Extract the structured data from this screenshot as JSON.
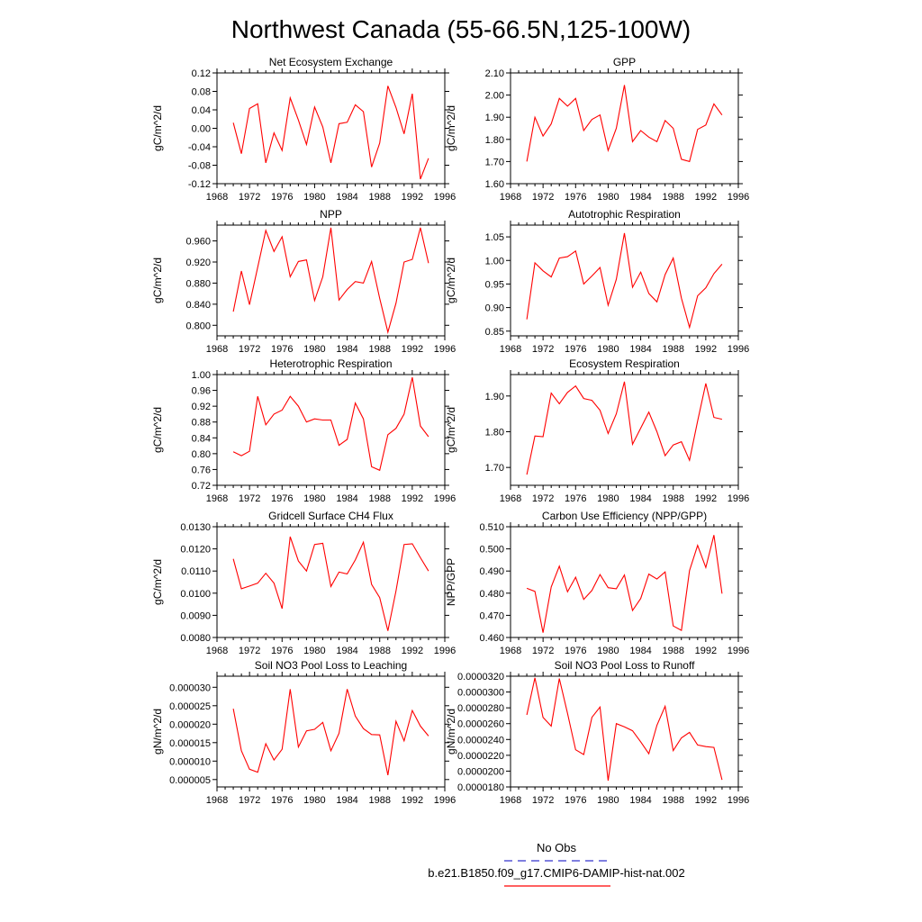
{
  "page": {
    "title": "Northwest Canada (55-66.5N,125-100W)"
  },
  "legend": {
    "items": [
      {
        "label": "No Obs",
        "color": "#3333cc",
        "style": "dashed"
      },
      {
        "label": "b.e21.B1850.f09_g17.CMIP6-DAMIP-hist-nat.002",
        "color": "#ff0000",
        "style": "solid"
      }
    ]
  },
  "chart_data": [
    {
      "type": "line",
      "title": "Net Ecosystem Exchange",
      "xlabel": "",
      "ylabel": "gC/m^2/d",
      "xlim": [
        1968,
        1996
      ],
      "ylim": [
        -0.12,
        0.12
      ],
      "xticks": [
        "1968",
        "1972",
        "1976",
        "1980",
        "1984",
        "1988",
        "1992",
        "1996"
      ],
      "yticks": [
        "-0.12",
        "-0.08",
        "-0.04",
        "0.00",
        "0.04",
        "0.08",
        "0.12"
      ],
      "series": [
        {
          "color": "#ff0000",
          "x": [
            1970,
            1971,
            1972,
            1973,
            1974,
            1975,
            1976,
            1977,
            1978,
            1979,
            1980,
            1981,
            1982,
            1983,
            1984,
            1985,
            1986,
            1987,
            1988,
            1989,
            1990,
            1991,
            1992,
            1993,
            1994
          ],
          "values": [
            0.012,
            -0.055,
            0.043,
            0.053,
            -0.075,
            -0.01,
            -0.048,
            0.066,
            0.018,
            -0.035,
            0.046,
            0.003,
            -0.075,
            0.01,
            0.013,
            0.051,
            0.036,
            -0.084,
            -0.032,
            0.092,
            0.045,
            -0.012,
            0.075,
            -0.11,
            -0.065
          ]
        }
      ]
    },
    {
      "type": "line",
      "title": "GPP",
      "xlabel": "",
      "ylabel": "gC/m^2/d",
      "xlim": [
        1968,
        1996
      ],
      "ylim": [
        1.6,
        2.1
      ],
      "xticks": [
        "1968",
        "1972",
        "1976",
        "1980",
        "1984",
        "1988",
        "1992",
        "1996"
      ],
      "yticks": [
        "1.60",
        "1.70",
        "1.80",
        "1.90",
        "2.00",
        "2.10"
      ],
      "series": [
        {
          "color": "#ff0000",
          "x": [
            1970,
            1971,
            1972,
            1973,
            1974,
            1975,
            1976,
            1977,
            1978,
            1979,
            1980,
            1981,
            1982,
            1983,
            1984,
            1985,
            1986,
            1987,
            1988,
            1989,
            1990,
            1991,
            1992,
            1993,
            1994
          ],
          "values": [
            1.7,
            1.9,
            1.815,
            1.87,
            1.985,
            1.95,
            1.985,
            1.84,
            1.89,
            1.91,
            1.75,
            1.85,
            2.045,
            1.79,
            1.84,
            1.81,
            1.79,
            1.885,
            1.85,
            1.71,
            1.7,
            1.845,
            1.865,
            1.96,
            1.91
          ]
        }
      ]
    },
    {
      "type": "line",
      "title": "NPP",
      "xlabel": "",
      "ylabel": "gC/m^2/d",
      "xlim": [
        1968,
        1996
      ],
      "ylim": [
        0.78,
        0.99
      ],
      "xticks": [
        "1968",
        "1972",
        "1976",
        "1980",
        "1984",
        "1988",
        "1992",
        "1996"
      ],
      "yticks": [
        "0.800",
        "0.840",
        "0.880",
        "0.920",
        "0.960"
      ],
      "series": [
        {
          "color": "#ff0000",
          "x": [
            1970,
            1971,
            1972,
            1973,
            1974,
            1975,
            1976,
            1977,
            1978,
            1979,
            1980,
            1981,
            1982,
            1983,
            1984,
            1985,
            1986,
            1987,
            1988,
            1989,
            1990,
            1991,
            1992,
            1993,
            1994
          ],
          "values": [
            0.826,
            0.903,
            0.839,
            0.91,
            0.98,
            0.94,
            0.968,
            0.892,
            0.921,
            0.924,
            0.847,
            0.892,
            0.985,
            0.848,
            0.868,
            0.883,
            0.88,
            0.921,
            0.851,
            0.787,
            0.842,
            0.92,
            0.925,
            0.985,
            0.918
          ]
        }
      ]
    },
    {
      "type": "line",
      "title": "Autotrophic Respiration",
      "xlabel": "",
      "ylabel": "gC/m^2/d",
      "xlim": [
        1968,
        1996
      ],
      "ylim": [
        0.84,
        1.075
      ],
      "xticks": [
        "1968",
        "1972",
        "1976",
        "1980",
        "1984",
        "1988",
        "1992",
        "1996"
      ],
      "yticks": [
        "0.85",
        "0.90",
        "0.95",
        "1.00",
        "1.05"
      ],
      "series": [
        {
          "color": "#ff0000",
          "x": [
            1970,
            1971,
            1972,
            1973,
            1974,
            1975,
            1976,
            1977,
            1978,
            1979,
            1980,
            1981,
            1982,
            1983,
            1984,
            1985,
            1986,
            1987,
            1988,
            1989,
            1990,
            1991,
            1992,
            1993,
            1994
          ],
          "values": [
            0.875,
            0.995,
            0.978,
            0.965,
            1.005,
            1.008,
            1.02,
            0.95,
            0.967,
            0.985,
            0.905,
            0.96,
            1.058,
            0.943,
            0.975,
            0.93,
            0.912,
            0.97,
            1.005,
            0.92,
            0.858,
            0.925,
            0.942,
            0.972,
            0.992
          ]
        }
      ]
    },
    {
      "type": "line",
      "title": "Heterotrophic Respiration",
      "xlabel": "",
      "ylabel": "gC/m^2/d",
      "xlim": [
        1968,
        1996
      ],
      "ylim": [
        0.72,
        1.0
      ],
      "xticks": [
        "1968",
        "1972",
        "1976",
        "1980",
        "1984",
        "1988",
        "1992",
        "1996"
      ],
      "yticks": [
        "0.72",
        "0.76",
        "0.80",
        "0.84",
        "0.88",
        "0.92",
        "0.96",
        "1.00"
      ],
      "series": [
        {
          "color": "#ff0000",
          "x": [
            1970,
            1971,
            1972,
            1973,
            1974,
            1975,
            1976,
            1977,
            1978,
            1979,
            1980,
            1981,
            1982,
            1983,
            1984,
            1985,
            1986,
            1987,
            1988,
            1989,
            1990,
            1991,
            1992,
            1993,
            1994
          ],
          "values": [
            0.805,
            0.795,
            0.806,
            0.945,
            0.873,
            0.9,
            0.91,
            0.945,
            0.92,
            0.88,
            0.888,
            0.885,
            0.885,
            0.821,
            0.836,
            0.928,
            0.888,
            0.767,
            0.758,
            0.848,
            0.864,
            0.9,
            0.993,
            0.87,
            0.843
          ]
        }
      ]
    },
    {
      "type": "line",
      "title": "Ecosystem Respiration",
      "xlabel": "",
      "ylabel": "gC/m^2/d",
      "xlim": [
        1968,
        1996
      ],
      "ylim": [
        1.65,
        1.96
      ],
      "xticks": [
        "1968",
        "1972",
        "1976",
        "1980",
        "1984",
        "1988",
        "1992",
        "1996"
      ],
      "yticks": [
        "1.70",
        "1.80",
        "1.90"
      ],
      "series": [
        {
          "color": "#ff0000",
          "x": [
            1970,
            1971,
            1972,
            1973,
            1974,
            1975,
            1976,
            1977,
            1978,
            1979,
            1980,
            1981,
            1982,
            1983,
            1984,
            1985,
            1986,
            1987,
            1988,
            1989,
            1990,
            1991,
            1992,
            1993,
            1994
          ],
          "values": [
            1.68,
            1.788,
            1.786,
            1.908,
            1.878,
            1.91,
            1.928,
            1.893,
            1.888,
            1.86,
            1.795,
            1.85,
            1.94,
            1.765,
            1.81,
            1.855,
            1.8,
            1.733,
            1.763,
            1.772,
            1.72,
            1.83,
            1.935,
            1.84,
            1.835
          ]
        }
      ]
    },
    {
      "type": "line",
      "title": "Gridcell Surface CH4 Flux",
      "xlabel": "",
      "ylabel": "gC/m^2/d",
      "xlim": [
        1968,
        1996
      ],
      "ylim": [
        0.008,
        0.013
      ],
      "xticks": [
        "1968",
        "1972",
        "1976",
        "1980",
        "1984",
        "1988",
        "1992",
        "1996"
      ],
      "yticks": [
        "0.0080",
        "0.0090",
        "0.0100",
        "0.0110",
        "0.0120",
        "0.0130"
      ],
      "series": [
        {
          "color": "#ff0000",
          "x": [
            1970,
            1971,
            1972,
            1973,
            1974,
            1975,
            1976,
            1977,
            1978,
            1979,
            1980,
            1981,
            1982,
            1983,
            1984,
            1985,
            1986,
            1987,
            1988,
            1989,
            1990,
            1991,
            1992,
            1993,
            1994
          ],
          "values": [
            0.01155,
            0.0102,
            0.01032,
            0.01045,
            0.0109,
            0.01045,
            0.0093,
            0.01255,
            0.01145,
            0.011,
            0.0122,
            0.01225,
            0.0103,
            0.01095,
            0.01087,
            0.0115,
            0.0123,
            0.0104,
            0.0098,
            0.0083,
            0.0101,
            0.0122,
            0.01223,
            0.0116,
            0.011
          ]
        }
      ]
    },
    {
      "type": "line",
      "title": "Carbon Use Efficiency (NPP/GPP)",
      "xlabel": "",
      "ylabel": "NPP/GPP",
      "xlim": [
        1968,
        1996
      ],
      "ylim": [
        0.46,
        0.51
      ],
      "xticks": [
        "1968",
        "1972",
        "1976",
        "1980",
        "1984",
        "1988",
        "1992",
        "1996"
      ],
      "yticks": [
        "0.460",
        "0.470",
        "0.480",
        "0.490",
        "0.500",
        "0.510"
      ],
      "series": [
        {
          "color": "#ff0000",
          "x": [
            1970,
            1971,
            1972,
            1973,
            1974,
            1975,
            1976,
            1977,
            1978,
            1979,
            1980,
            1981,
            1982,
            1983,
            1984,
            1985,
            1986,
            1987,
            1988,
            1989,
            1990,
            1991,
            1992,
            1993,
            1994
          ],
          "values": [
            0.4822,
            0.4808,
            0.4622,
            0.4828,
            0.4922,
            0.4806,
            0.4872,
            0.4772,
            0.4812,
            0.4884,
            0.4825,
            0.482,
            0.4882,
            0.4722,
            0.4776,
            0.4886,
            0.4864,
            0.4896,
            0.4652,
            0.4632,
            0.4902,
            0.5016,
            0.4916,
            0.5062,
            0.4798
          ]
        }
      ]
    },
    {
      "type": "line",
      "title": "Soil NO3 Pool Loss to Leaching",
      "xlabel": "",
      "ylabel": "gN/m^2/d",
      "xlim": [
        1968,
        1996
      ],
      "ylim": [
        3e-06,
        3.3e-05
      ],
      "xticks": [
        "1968",
        "1972",
        "1976",
        "1980",
        "1984",
        "1988",
        "1992",
        "1996"
      ],
      "yticks": [
        "0.000005",
        "0.000010",
        "0.000015",
        "0.000020",
        "0.000025",
        "0.000030"
      ],
      "series": [
        {
          "color": "#ff0000",
          "x": [
            1970,
            1971,
            1972,
            1973,
            1974,
            1975,
            1976,
            1977,
            1978,
            1979,
            1980,
            1981,
            1982,
            1983,
            1984,
            1985,
            1986,
            1987,
            1988,
            1989,
            1990,
            1991,
            1992,
            1993,
            1994
          ],
          "values": [
            2.42e-05,
            1.28e-05,
            7.8e-06,
            7e-06,
            1.47e-05,
            1.03e-05,
            1.32e-05,
            2.95e-05,
            1.38e-05,
            1.82e-05,
            1.86e-05,
            2.05e-05,
            1.28e-05,
            1.75e-05,
            2.95e-05,
            2.22e-05,
            1.88e-05,
            1.72e-05,
            1.71e-05,
            6.2e-06,
            2.08e-05,
            1.55e-05,
            2.37e-05,
            1.95e-05,
            1.68e-05
          ]
        }
      ]
    },
    {
      "type": "line",
      "title": "Soil NO3 Pool Loss to Runoff",
      "xlabel": "",
      "ylabel": "gN/m^2/d",
      "xlim": [
        1968,
        1996
      ],
      "ylim": [
        1.8e-05,
        3.2e-05
      ],
      "xticks": [
        "1968",
        "1972",
        "1976",
        "1980",
        "1984",
        "1988",
        "1992",
        "1996"
      ],
      "yticks": [
        "0.0000180",
        "0.0000200",
        "0.0000220",
        "0.0000240",
        "0.0000260",
        "0.0000280",
        "0.0000300",
        "0.0000320"
      ],
      "series": [
        {
          "color": "#ff0000",
          "x": [
            1970,
            1971,
            1972,
            1973,
            1974,
            1975,
            1976,
            1977,
            1978,
            1979,
            1980,
            1981,
            1982,
            1983,
            1984,
            1985,
            1986,
            1987,
            1988,
            1989,
            1990,
            1991,
            1992,
            1993,
            1994
          ],
          "values": [
            2.71e-05,
            3.18e-05,
            2.68e-05,
            2.57e-05,
            3.17e-05,
            2.73e-05,
            2.27e-05,
            2.21e-05,
            2.68e-05,
            2.81e-05,
            1.88e-05,
            2.6e-05,
            2.56e-05,
            2.51e-05,
            2.37e-05,
            2.22e-05,
            2.58e-05,
            2.82e-05,
            2.26e-05,
            2.42e-05,
            2.49e-05,
            2.33e-05,
            2.31e-05,
            2.3e-05,
            1.89e-05
          ]
        }
      ]
    }
  ]
}
